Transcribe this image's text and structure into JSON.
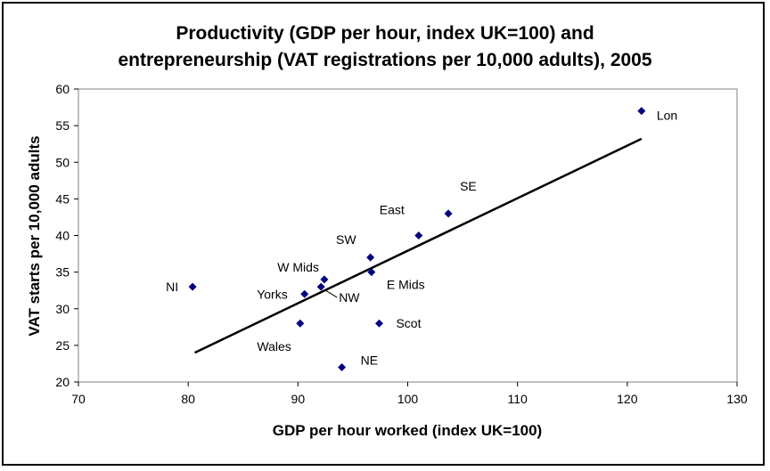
{
  "chart_data": {
    "type": "scatter",
    "title": [
      "Productivity (GDP per hour, index UK=100) and",
      "entrepreneurship (VAT registrations per 10,000 adults), 2005"
    ],
    "xlabel": "GDP per hour worked (index UK=100)",
    "ylabel": "VAT starts per 10,000 adults",
    "xlim": [
      70,
      130
    ],
    "ylim": [
      20,
      60
    ],
    "xticks": [
      70,
      80,
      90,
      100,
      110,
      120,
      130
    ],
    "yticks": [
      20,
      25,
      30,
      35,
      40,
      45,
      50,
      55,
      60
    ],
    "grid": false,
    "marker": "diamond",
    "marker_color": "#000080",
    "trendline_color": "#000000",
    "points": [
      {
        "label": "Lon",
        "x": 121.3,
        "y": 57
      },
      {
        "label": "SE",
        "x": 103.7,
        "y": 43
      },
      {
        "label": "East",
        "x": 101.0,
        "y": 40
      },
      {
        "label": "SW",
        "x": 96.6,
        "y": 37
      },
      {
        "label": "E Mids",
        "x": 96.7,
        "y": 35
      },
      {
        "label": "W Mids",
        "x": 92.4,
        "y": 34
      },
      {
        "label": "NW",
        "x": 92.1,
        "y": 33
      },
      {
        "label": "NI",
        "x": 80.4,
        "y": 33
      },
      {
        "label": "Yorks",
        "x": 90.6,
        "y": 32
      },
      {
        "label": "Scot",
        "x": 97.4,
        "y": 28
      },
      {
        "label": "Wales",
        "x": 90.2,
        "y": 28
      },
      {
        "label": "NE",
        "x": 94.0,
        "y": 22
      }
    ],
    "trendline": {
      "x": [
        80.6,
        121.3
      ],
      "y": [
        24.0,
        53.2
      ]
    }
  }
}
